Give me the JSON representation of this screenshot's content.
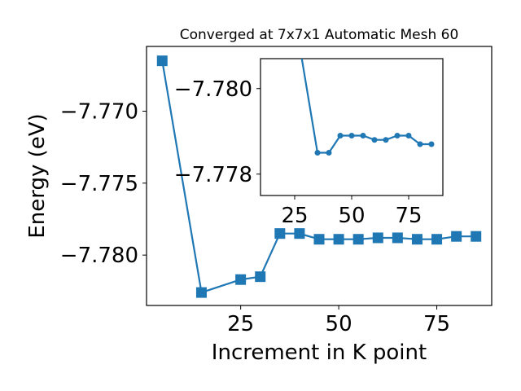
{
  "chart_data": [
    {
      "type": "line",
      "title": "Converged at 7x7x1 Automatic Mesh 60",
      "xlabel": "Increment in K point",
      "ylabel": "Energy (eV)",
      "xlim": [
        1.0,
        89.0
      ],
      "ylim": [
        -7.7835,
        -7.7655
      ],
      "xticks": [
        25,
        50,
        75
      ],
      "xtick_labels": [
        "25",
        "50",
        "75"
      ],
      "yticks": [
        -7.77,
        -7.775,
        -7.78
      ],
      "ytick_labels": [
        "−7.770",
        "−7.775",
        "−7.780"
      ],
      "grid": false,
      "marker": "square",
      "color": "#1f77b4",
      "series": [
        {
          "x": [
            5,
            15,
            25,
            30,
            35,
            40,
            45,
            50,
            55,
            60,
            65,
            70,
            75,
            80,
            85
          ],
          "y": [
            -7.7665,
            -7.7826,
            -7.7817,
            -7.7815,
            -7.7785,
            -7.7785,
            -7.7789,
            -7.7789,
            -7.7789,
            -7.7788,
            -7.7788,
            -7.7789,
            -7.7789,
            -7.7787,
            -7.7787
          ]
        }
      ]
    },
    {
      "type": "line",
      "title": "",
      "xlabel": "",
      "ylabel": "",
      "xlim": [
        10.0,
        90.0
      ],
      "ylim": [
        -7.7775,
        -7.7807
      ],
      "xticks": [
        25,
        50,
        75
      ],
      "xtick_labels": [
        "25",
        "50",
        "75"
      ],
      "yticks": [
        -7.78,
        -7.778
      ],
      "ytick_labels": [
        "−7.780",
        "−7.778"
      ],
      "y_axis_inverted": true,
      "grid": false,
      "marker": "circle",
      "color": "#1f77b4",
      "series": [
        {
          "x": [
            25,
            35,
            40,
            45,
            50,
            55,
            60,
            65,
            70,
            75,
            80,
            85
          ],
          "y": [
            -7.7817,
            -7.7785,
            -7.7785,
            -7.7789,
            -7.7789,
            -7.7789,
            -7.7788,
            -7.7788,
            -7.7789,
            -7.7789,
            -7.7787,
            -7.7787
          ]
        }
      ]
    }
  ]
}
